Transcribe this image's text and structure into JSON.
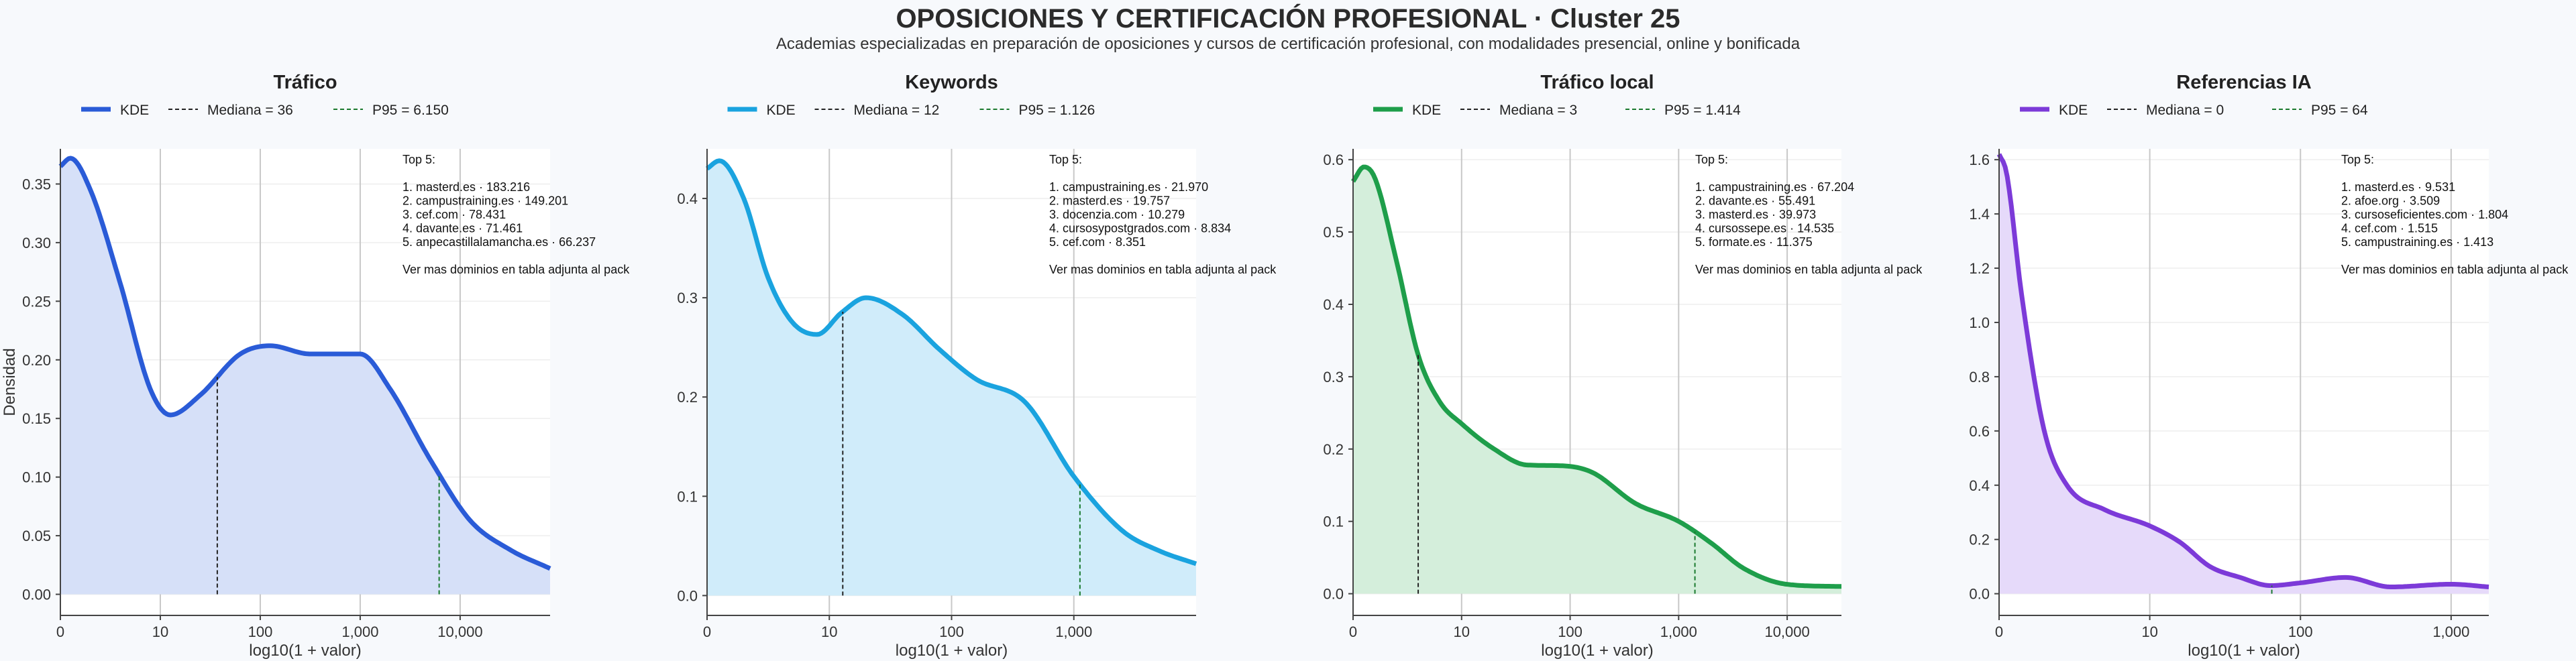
{
  "title": "OPOSICIONES Y CERTIFICACIÓN PROFESIONAL · Cluster 25",
  "subtitle": "Academias especializadas en preparación de oposiciones y cursos de certificación profesional, con modalidades presencial, online y bonificada",
  "chart_data": [
    {
      "type": "area",
      "title": "Tráfico",
      "color": "#2a5bd7",
      "fill": "#d6e0f8",
      "xlabel": "log10(1 + valor)",
      "ylabel": "Densidad",
      "x_scale": "log10(1+x)",
      "xlim": [
        0,
        4.9
      ],
      "ylim": [
        -0.018,
        0.38
      ],
      "xticks": [
        0,
        1,
        2,
        3,
        4
      ],
      "xtick_labels": [
        "0",
        "10",
        "100",
        "1,000",
        "10,000"
      ],
      "yticks": [
        0,
        0.05,
        0.1,
        0.15,
        0.2,
        0.25,
        0.3,
        0.35
      ],
      "ytick_labels": [
        "0.00",
        "0.05",
        "0.10",
        "0.15",
        "0.20",
        "0.25",
        "0.30",
        "0.35"
      ],
      "legend": {
        "kde": "KDE",
        "median": "Mediana = 36",
        "p95": "P95 = 6.150",
        "placement": "top-center"
      },
      "median_log": 1.57,
      "p95_log": 3.79,
      "x": [
        0,
        0.1,
        0.3,
        0.6,
        0.9,
        1.1,
        1.4,
        1.8,
        2.1,
        2.5,
        3.0,
        3.3,
        3.7,
        4.1,
        4.5,
        4.9
      ],
      "y": [
        0.365,
        0.372,
        0.345,
        0.265,
        0.175,
        0.153,
        0.17,
        0.205,
        0.212,
        0.205,
        0.205,
        0.175,
        0.115,
        0.063,
        0.038,
        0.022
      ],
      "annotation": [
        "Top 5:",
        "",
        "1. masterd.es · 183.216",
        "2. campustraining.es · 149.201",
        "3. cef.com · 78.431",
        "4. davante.es · 71.461",
        "5. anpecastillalamancha.es · 66.237",
        "",
        "Ver mas dominios en tabla adjunta al pack"
      ]
    },
    {
      "type": "area",
      "title": "Keywords",
      "color": "#1aa3df",
      "fill": "#d0ecfa",
      "xlabel": "log10(1 + valor)",
      "ylabel": "",
      "x_scale": "log10(1+x)",
      "xlim": [
        0,
        4.0
      ],
      "ylim": [
        -0.02,
        0.45
      ],
      "xticks": [
        0,
        1,
        2,
        3
      ],
      "xtick_labels": [
        "0",
        "10",
        "100",
        "1,000"
      ],
      "yticks": [
        0,
        0.1,
        0.2,
        0.3,
        0.4
      ],
      "ytick_labels": [
        "0.0",
        "0.1",
        "0.2",
        "0.3",
        "0.4"
      ],
      "legend": {
        "kde": "KDE",
        "median": "Mediana = 12",
        "p95": "P95 = 1.126",
        "placement": "top-center"
      },
      "median_log": 1.11,
      "p95_log": 3.05,
      "x": [
        0,
        0.1,
        0.3,
        0.5,
        0.7,
        0.9,
        1.1,
        1.3,
        1.6,
        1.9,
        2.2,
        2.6,
        3.0,
        3.4,
        3.7,
        4.0
      ],
      "y": [
        0.43,
        0.438,
        0.4,
        0.32,
        0.275,
        0.263,
        0.285,
        0.3,
        0.283,
        0.248,
        0.218,
        0.195,
        0.12,
        0.065,
        0.045,
        0.032
      ],
      "annotation": [
        "Top 5:",
        "",
        "1. campustraining.es · 21.970",
        "2. masterd.es · 19.757",
        "3. docenzia.com · 10.279",
        "4. cursosypostgrados.com · 8.834",
        "5. cef.com · 8.351",
        "",
        "Ver mas dominios en tabla adjunta al pack"
      ]
    },
    {
      "type": "area",
      "title": "Tráfico local",
      "color": "#1e9e4a",
      "fill": "#d4eedb",
      "xlabel": "log10(1 + valor)",
      "ylabel": "",
      "x_scale": "log10(1+x)",
      "xlim": [
        0,
        4.5
      ],
      "ylim": [
        -0.03,
        0.615
      ],
      "xticks": [
        0,
        1,
        2,
        3,
        4
      ],
      "xtick_labels": [
        "0",
        "10",
        "100",
        "1,000",
        "10,000"
      ],
      "yticks": [
        0,
        0.1,
        0.2,
        0.3,
        0.4,
        0.5,
        0.6
      ],
      "ytick_labels": [
        "0.0",
        "0.1",
        "0.2",
        "0.3",
        "0.4",
        "0.5",
        "0.6"
      ],
      "legend": {
        "kde": "KDE",
        "median": "Mediana = 3",
        "p95": "P95 = 1.414",
        "placement": "top-center"
      },
      "median_log": 0.6,
      "p95_log": 3.15,
      "x": [
        0,
        0.1,
        0.2,
        0.4,
        0.6,
        0.8,
        1.0,
        1.3,
        1.6,
        1.9,
        2.2,
        2.6,
        3.0,
        3.3,
        3.6,
        4.0,
        4.5
      ],
      "y": [
        0.57,
        0.59,
        0.575,
        0.46,
        0.33,
        0.265,
        0.235,
        0.2,
        0.178,
        0.177,
        0.168,
        0.125,
        0.1,
        0.07,
        0.035,
        0.013,
        0.01
      ],
      "annotation": [
        "Top 5:",
        "",
        "1. campustraining.es · 67.204",
        "2. davante.es · 55.491",
        "3. masterd.es · 39.973",
        "4. cursossepe.es · 14.535",
        "5. formate.es · 11.375",
        "",
        "Ver mas dominios en tabla adjunta al pack"
      ]
    },
    {
      "type": "area",
      "title": "Referencias IA",
      "color": "#7c3ad8",
      "fill": "#e6dafa",
      "xlabel": "log10(1 + valor)",
      "ylabel": "",
      "x_scale": "log10(1+x)",
      "xlim": [
        0,
        3.25
      ],
      "ylim": [
        -0.08,
        1.64
      ],
      "xticks": [
        0,
        1,
        2,
        3
      ],
      "xtick_labels": [
        "0",
        "10",
        "100",
        "1,000"
      ],
      "yticks": [
        0,
        0.2,
        0.4,
        0.6,
        0.8,
        1.0,
        1.2,
        1.4,
        1.6
      ],
      "ytick_labels": [
        "0.0",
        "0.2",
        "0.4",
        "0.6",
        "0.8",
        "1.0",
        "1.2",
        "1.4",
        "1.6"
      ],
      "legend": {
        "kde": "KDE",
        "median": "Mediana = 0",
        "p95": "P95 = 64",
        "placement": "top-center"
      },
      "median_log": 0,
      "p95_log": 1.81,
      "x": [
        0,
        0.05,
        0.15,
        0.3,
        0.45,
        0.7,
        1.0,
        1.2,
        1.4,
        1.6,
        1.8,
        2.0,
        2.3,
        2.6,
        3.0,
        3.25
      ],
      "y": [
        1.62,
        1.55,
        1.1,
        0.6,
        0.4,
        0.31,
        0.25,
        0.19,
        0.1,
        0.06,
        0.03,
        0.04,
        0.06,
        0.025,
        0.035,
        0.025
      ],
      "annotation": [
        "Top 5:",
        "",
        "1. masterd.es · 9.531",
        "2. afoe.org · 3.509",
        "3. cursoseficientes.com · 1.804",
        "4. cef.com · 1.515",
        "5. campustraining.es · 1.413",
        "",
        "Ver mas dominios en tabla adjunta al pack"
      ]
    }
  ]
}
